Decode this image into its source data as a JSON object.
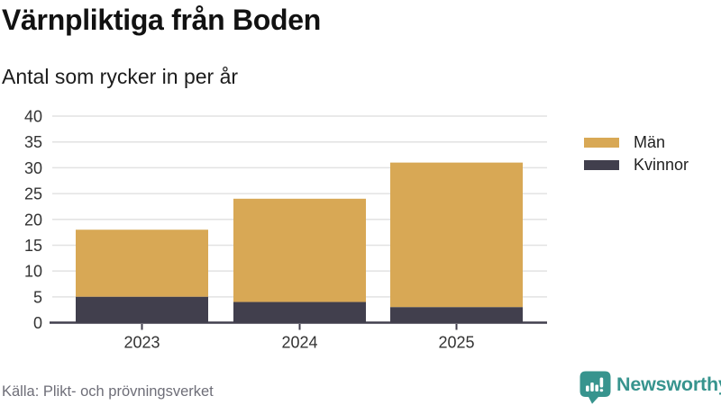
{
  "header": {
    "title": "Värnpliktiga från Boden",
    "subtitle": "Antal som rycker in per år"
  },
  "chart_data": {
    "type": "bar",
    "stacked": true,
    "title": "Värnpliktiga från Boden",
    "subtitle": "Antal som rycker in per år",
    "categories": [
      "2023",
      "2024",
      "2025"
    ],
    "series": [
      {
        "name": "Män",
        "color": "#d8a855",
        "values": [
          13,
          20,
          28
        ]
      },
      {
        "name": "Kvinnor",
        "color": "#413f4d",
        "values": [
          5,
          4,
          3
        ]
      }
    ],
    "stacked_totals": [
      18,
      24,
      31
    ],
    "xlabel": "",
    "ylabel": "",
    "ylim": [
      0,
      40
    ],
    "yticks": [
      0,
      5,
      10,
      15,
      20,
      25,
      30,
      35,
      40
    ],
    "grid": true,
    "gridline_color": "#e2e2e2",
    "axis_line_color": "#413f4d",
    "tick_label_color": "#333333",
    "legend_position": "right"
  },
  "footer": {
    "source": "Källa: Plikt- och prövningsverket",
    "brand": "Newsworthy",
    "brand_color": "#37948e"
  }
}
